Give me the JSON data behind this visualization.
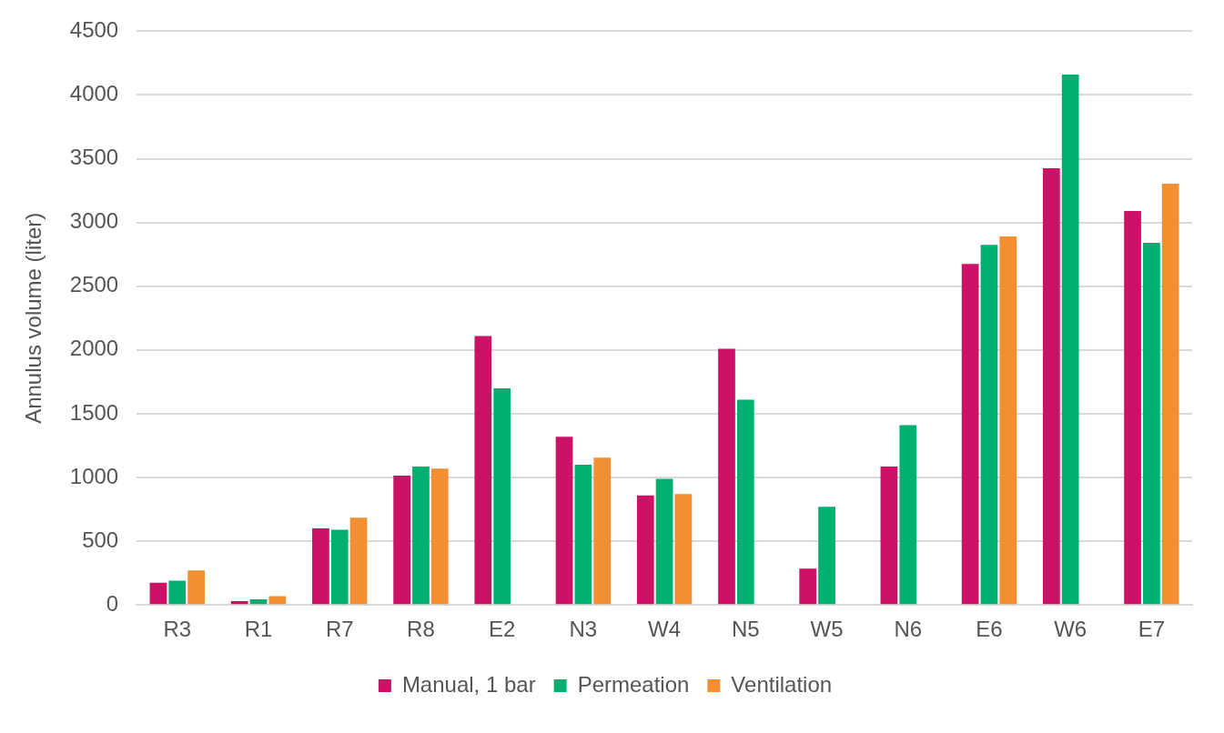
{
  "chart_data": {
    "type": "bar",
    "ylabel": "Annulus volume (liter)",
    "categories": [
      "R3",
      "R1",
      "R7",
      "R8",
      "E2",
      "N3",
      "W4",
      "N5",
      "W5",
      "N6",
      "E6",
      "W6",
      "E7"
    ],
    "series": [
      {
        "name": "Manual, 1 bar",
        "color": "#cc1166",
        "values": [
          175,
          30,
          600,
          1015,
          2110,
          1320,
          860,
          2010,
          285,
          1085,
          2675,
          3425,
          3090
        ]
      },
      {
        "name": "Permeation",
        "color": "#00b070",
        "values": [
          190,
          45,
          590,
          1085,
          1700,
          1100,
          990,
          1610,
          770,
          1410,
          2825,
          4160,
          2840
        ]
      },
      {
        "name": "Ventilation",
        "color": "#f38f32",
        "values": [
          270,
          70,
          685,
          1070,
          null,
          1155,
          870,
          null,
          null,
          null,
          2890,
          null,
          3305
        ]
      }
    ],
    "ylim": [
      0,
      4500
    ],
    "yticks": [
      0,
      500,
      1000,
      1500,
      2000,
      2500,
      3000,
      3500,
      4000,
      4500
    ],
    "grid": "y",
    "legend": "bottom"
  }
}
